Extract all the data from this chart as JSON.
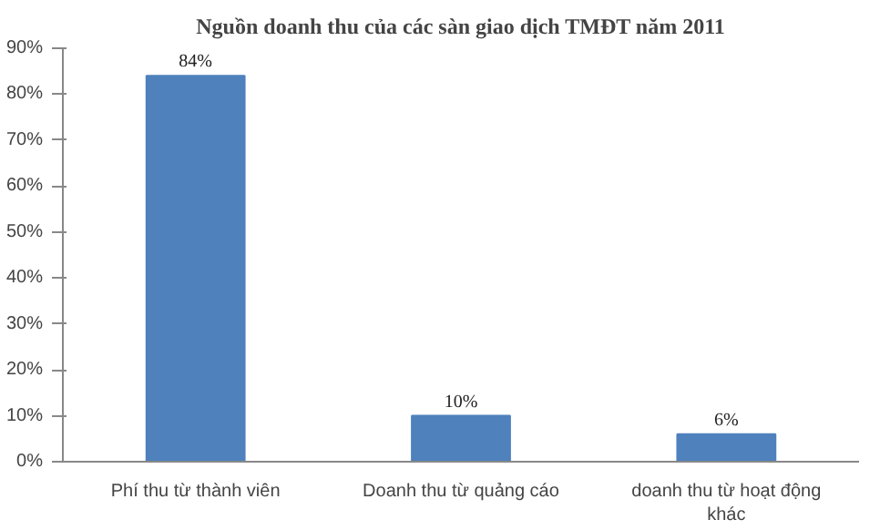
{
  "chart_data": {
    "type": "bar",
    "title": "Nguồn doanh thu của các sàn giao dịch TMĐT năm 2011",
    "categories": [
      "Phí thu từ thành viên",
      "Doanh thu từ quảng cáo",
      "doanh thu từ hoạt động khác"
    ],
    "values": [
      84,
      10,
      6
    ],
    "value_labels": [
      "84%",
      "10%",
      "6%"
    ],
    "color": "#4f81bd",
    "ylim": [
      0,
      90
    ],
    "yticks": [
      {
        "value": 0,
        "label": "0%"
      },
      {
        "value": 10,
        "label": "10%"
      },
      {
        "value": 20,
        "label": "20%"
      },
      {
        "value": 30,
        "label": "30%"
      },
      {
        "value": 40,
        "label": "40%"
      },
      {
        "value": 50,
        "label": "50%"
      },
      {
        "value": 60,
        "label": "60%"
      },
      {
        "value": 70,
        "label": "70%"
      },
      {
        "value": 80,
        "label": "80%"
      },
      {
        "value": 90,
        "label": "90%"
      }
    ],
    "grid": false
  }
}
